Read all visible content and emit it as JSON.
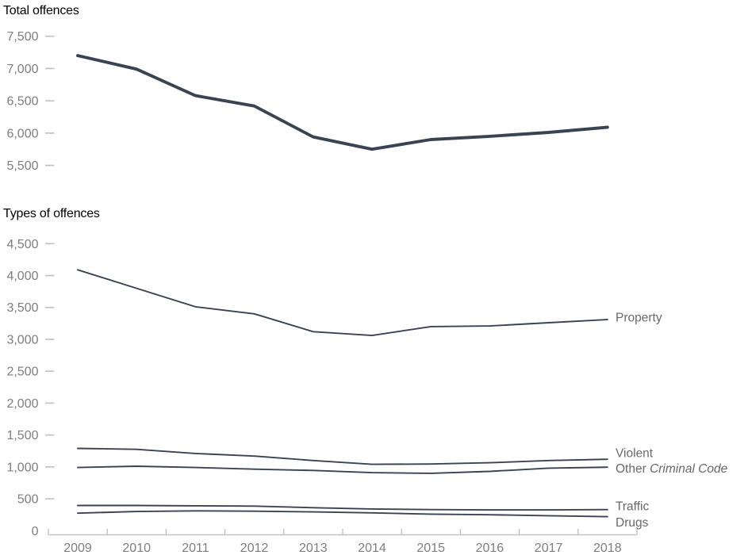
{
  "figure": {
    "panel1_title": "Total offences",
    "panel2_title": "Types of offences"
  },
  "colors": {
    "line": "#3a4352",
    "tick_label": "#7e7e7e",
    "axis_line": "#c2c2c2",
    "series_label": "#696969",
    "title": "#000000"
  },
  "chart_data": [
    {
      "type": "line",
      "title": "Total offences",
      "categories": [
        "2009",
        "2010",
        "2011",
        "2012",
        "2013",
        "2014",
        "2015",
        "2016",
        "2017",
        "2018"
      ],
      "xlabel": "",
      "ylabel": "",
      "ylim": [
        5500,
        7500
      ],
      "grid": false,
      "x_axis_visible": false,
      "y_ticks": [
        {
          "label": "7,500",
          "value": 7500
        },
        {
          "label": "7,000",
          "value": 7000
        },
        {
          "label": "6,500",
          "value": 6500
        },
        {
          "label": "6,000",
          "value": 6000
        },
        {
          "label": "5,500",
          "value": 5500
        }
      ],
      "series": [
        {
          "name": "Total offences",
          "values": [
            7200,
            6990,
            6580,
            6420,
            5940,
            5750,
            5900,
            5950,
            6010,
            6090
          ]
        }
      ]
    },
    {
      "type": "line",
      "title": "Types of offences",
      "categories": [
        "2009",
        "2010",
        "2011",
        "2012",
        "2013",
        "2014",
        "2015",
        "2016",
        "2017",
        "2018"
      ],
      "xlabel": "",
      "ylabel": "",
      "ylim": [
        0,
        4500
      ],
      "grid": false,
      "x_axis_visible": true,
      "legend_position": "right-of-line-ends",
      "y_ticks": [
        {
          "label": "4,500",
          "value": 4500
        },
        {
          "label": "4,000",
          "value": 4000
        },
        {
          "label": "3,500",
          "value": 3500
        },
        {
          "label": "3,000",
          "value": 3000
        },
        {
          "label": "2,500",
          "value": 2500
        },
        {
          "label": "2,000",
          "value": 2000
        },
        {
          "label": "1,500",
          "value": 1500
        },
        {
          "label": "1,000",
          "value": 1000
        },
        {
          "label": "500",
          "value": 500
        },
        {
          "label": "0",
          "value": 0
        }
      ],
      "series": [
        {
          "name": "Property",
          "label_parts": [
            {
              "text": "Property",
              "italic": false
            }
          ],
          "values": [
            4090,
            3800,
            3510,
            3400,
            3120,
            3060,
            3200,
            3210,
            3260,
            3310
          ]
        },
        {
          "name": "Violent",
          "label_parts": [
            {
              "text": "Violent",
              "italic": false
            }
          ],
          "values": [
            1290,
            1275,
            1210,
            1170,
            1100,
            1040,
            1045,
            1065,
            1100,
            1120
          ]
        },
        {
          "name": "Other Criminal Code",
          "label_parts": [
            {
              "text": "Other ",
              "italic": false
            },
            {
              "text": "Criminal Code",
              "italic": true
            }
          ],
          "values": [
            990,
            1010,
            990,
            965,
            945,
            910,
            900,
            930,
            980,
            995
          ]
        },
        {
          "name": "Traffic",
          "label_parts": [
            {
              "text": "Traffic",
              "italic": false
            }
          ],
          "values": [
            395,
            395,
            390,
            385,
            360,
            340,
            330,
            325,
            325,
            330
          ]
        },
        {
          "name": "Drugs",
          "label_parts": [
            {
              "text": "Drugs",
              "italic": false
            }
          ],
          "values": [
            275,
            300,
            310,
            305,
            295,
            280,
            260,
            250,
            235,
            220
          ]
        }
      ]
    }
  ]
}
